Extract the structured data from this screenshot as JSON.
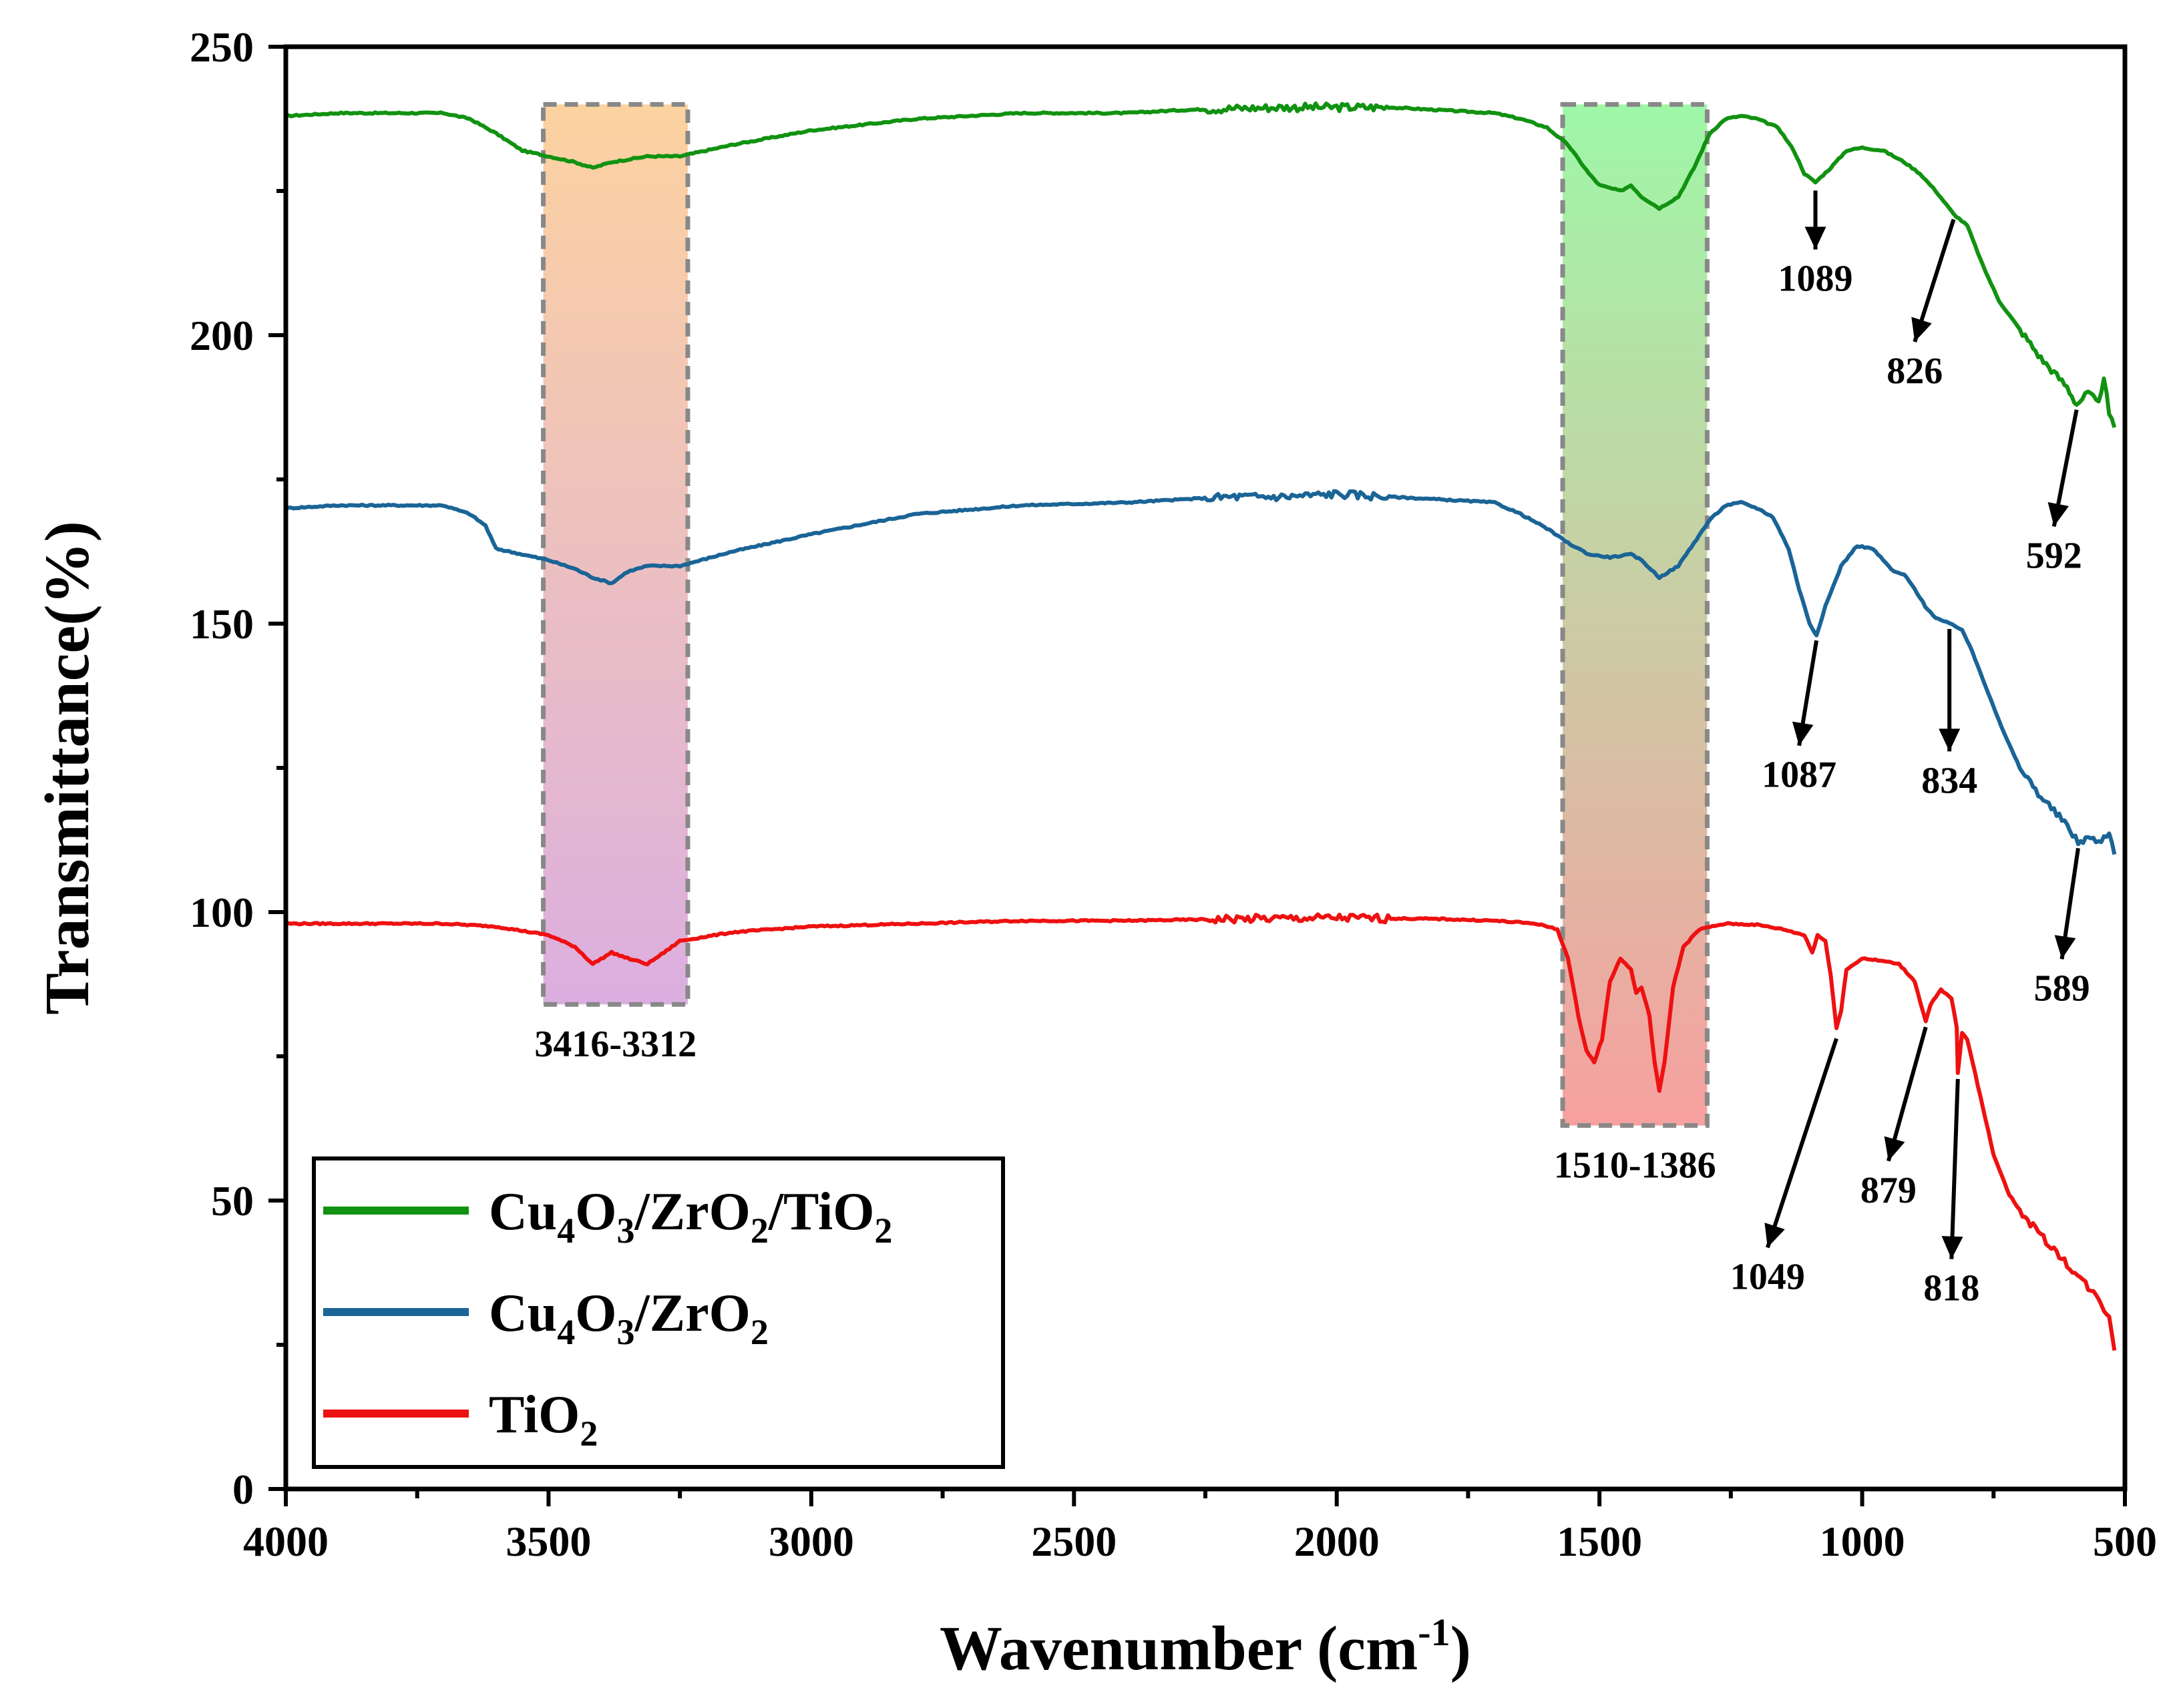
{
  "chart_data": {
    "type": "line",
    "xlabel": "Wavenumber (cm",
    "xlabel_sup": "-1",
    "xlabel_close": ")",
    "ylabel": "Transmittance(%)",
    "xlim": [
      4000,
      500
    ],
    "ylim": [
      0,
      250
    ],
    "x_ticks": [
      4000,
      3500,
      3000,
      2500,
      2000,
      1500,
      1000,
      500
    ],
    "y_ticks": [
      0,
      50,
      100,
      150,
      200,
      250
    ],
    "series": [
      {
        "name": "Cu4O3/ZrO2/TiO2",
        "label_parts": [
          [
            "Cu",
            ""
          ],
          [
            "4",
            "sub"
          ],
          [
            "O",
            ""
          ],
          [
            "3",
            "sub"
          ],
          [
            "/ZrO",
            ""
          ],
          [
            "2",
            "sub"
          ],
          [
            "/TiO",
            ""
          ],
          [
            "2",
            "sub"
          ]
        ],
        "color": "#119211",
        "points": [
          [
            4000,
            238
          ],
          [
            3900,
            238.5
          ],
          [
            3800,
            238.5
          ],
          [
            3700,
            238.5
          ],
          [
            3650,
            237.5
          ],
          [
            3600,
            235
          ],
          [
            3550,
            232
          ],
          [
            3500,
            231
          ],
          [
            3450,
            230
          ],
          [
            3416,
            229
          ],
          [
            3380,
            230
          ],
          [
            3312,
            231
          ],
          [
            3250,
            231
          ],
          [
            3150,
            233
          ],
          [
            3000,
            235.5
          ],
          [
            2800,
            237.5
          ],
          [
            2600,
            238.5
          ],
          [
            2400,
            238.5
          ],
          [
            2300,
            239
          ],
          [
            2200,
            239.3
          ],
          [
            2100,
            239.5
          ],
          [
            2000,
            239.5
          ],
          [
            1900,
            239.5
          ],
          [
            1800,
            239
          ],
          [
            1700,
            238.5
          ],
          [
            1650,
            237.5
          ],
          [
            1600,
            236
          ],
          [
            1560,
            233
          ],
          [
            1520,
            228
          ],
          [
            1500,
            226
          ],
          [
            1460,
            225
          ],
          [
            1440,
            226
          ],
          [
            1420,
            224
          ],
          [
            1386,
            222
          ],
          [
            1350,
            224
          ],
          [
            1320,
            229
          ],
          [
            1290,
            235
          ],
          [
            1260,
            237.5
          ],
          [
            1230,
            238
          ],
          [
            1200,
            237.5
          ],
          [
            1160,
            236
          ],
          [
            1130,
            232
          ],
          [
            1110,
            228
          ],
          [
            1089,
            226.5
          ],
          [
            1060,
            229
          ],
          [
            1030,
            232
          ],
          [
            1000,
            232.5
          ],
          [
            960,
            232
          ],
          [
            920,
            230
          ],
          [
            890,
            228
          ],
          [
            860,
            225
          ],
          [
            826,
            221
          ],
          [
            800,
            219
          ],
          [
            770,
            212
          ],
          [
            740,
            206
          ],
          [
            700,
            201
          ],
          [
            660,
            196
          ],
          [
            630,
            193
          ],
          [
            610,
            191
          ],
          [
            592,
            188
          ],
          [
            570,
            190
          ],
          [
            550,
            188
          ],
          [
            540,
            193
          ],
          [
            530,
            186
          ],
          [
            520,
            184
          ]
        ]
      },
      {
        "name": "Cu4O3/ZrO2",
        "label_parts": [
          [
            "Cu",
            ""
          ],
          [
            "4",
            "sub"
          ],
          [
            "O",
            ""
          ],
          [
            "3",
            "sub"
          ],
          [
            "/ZrO",
            ""
          ],
          [
            "2",
            "sub"
          ]
        ],
        "color": "#1a6496",
        "points": [
          [
            4000,
            170
          ],
          [
            3900,
            170.5
          ],
          [
            3800,
            170.5
          ],
          [
            3700,
            170.5
          ],
          [
            3650,
            169
          ],
          [
            3620,
            167
          ],
          [
            3600,
            163
          ],
          [
            3550,
            162
          ],
          [
            3500,
            161
          ],
          [
            3450,
            159.5
          ],
          [
            3416,
            158
          ],
          [
            3380,
            157
          ],
          [
            3350,
            159
          ],
          [
            3312,
            160
          ],
          [
            3250,
            160
          ],
          [
            3150,
            162.5
          ],
          [
            3000,
            165.5
          ],
          [
            2800,
            169
          ],
          [
            2600,
            170.5
          ],
          [
            2400,
            171
          ],
          [
            2200,
            172
          ],
          [
            2100,
            172
          ],
          [
            2000,
            172.5
          ],
          [
            1900,
            172
          ],
          [
            1800,
            171.5
          ],
          [
            1700,
            171
          ],
          [
            1650,
            169
          ],
          [
            1600,
            166.5
          ],
          [
            1560,
            164
          ],
          [
            1520,
            162
          ],
          [
            1480,
            161.5
          ],
          [
            1440,
            162
          ],
          [
            1420,
            161
          ],
          [
            1386,
            158
          ],
          [
            1350,
            160
          ],
          [
            1320,
            164
          ],
          [
            1290,
            168
          ],
          [
            1260,
            170.5
          ],
          [
            1230,
            171
          ],
          [
            1200,
            170
          ],
          [
            1170,
            168.5
          ],
          [
            1140,
            163
          ],
          [
            1120,
            156
          ],
          [
            1100,
            150
          ],
          [
            1087,
            148
          ],
          [
            1070,
            153
          ],
          [
            1040,
            160
          ],
          [
            1010,
            163.5
          ],
          [
            980,
            163
          ],
          [
            960,
            161
          ],
          [
            940,
            159
          ],
          [
            920,
            158.5
          ],
          [
            900,
            156
          ],
          [
            880,
            153
          ],
          [
            860,
            151
          ],
          [
            834,
            150
          ],
          [
            810,
            149
          ],
          [
            790,
            145
          ],
          [
            760,
            138
          ],
          [
            730,
            131
          ],
          [
            700,
            125
          ],
          [
            660,
            120
          ],
          [
            630,
            117
          ],
          [
            610,
            115
          ],
          [
            589,
            112
          ],
          [
            570,
            113
          ],
          [
            550,
            112
          ],
          [
            530,
            114
          ],
          [
            520,
            110
          ]
        ]
      },
      {
        "name": "TiO2",
        "label_parts": [
          [
            "TiO",
            ""
          ],
          [
            "2",
            "sub"
          ]
        ],
        "color": "#ee1111",
        "points": [
          [
            4000,
            98
          ],
          [
            3900,
            98
          ],
          [
            3800,
            98
          ],
          [
            3700,
            98
          ],
          [
            3600,
            97.5
          ],
          [
            3500,
            96
          ],
          [
            3450,
            94
          ],
          [
            3416,
            91
          ],
          [
            3380,
            93
          ],
          [
            3350,
            92
          ],
          [
            3312,
            91
          ],
          [
            3280,
            93
          ],
          [
            3250,
            95
          ],
          [
            3150,
            96.5
          ],
          [
            3000,
            97.5
          ],
          [
            2800,
            98
          ],
          [
            2600,
            98.5
          ],
          [
            2400,
            98.5
          ],
          [
            2200,
            98.8
          ],
          [
            2000,
            99
          ],
          [
            1800,
            98.8
          ],
          [
            1700,
            98.5
          ],
          [
            1620,
            98
          ],
          [
            1580,
            97
          ],
          [
            1560,
            92
          ],
          [
            1540,
            82
          ],
          [
            1525,
            76
          ],
          [
            1510,
            74
          ],
          [
            1495,
            78
          ],
          [
            1480,
            88
          ],
          [
            1460,
            92
          ],
          [
            1440,
            90
          ],
          [
            1430,
            86
          ],
          [
            1420,
            87
          ],
          [
            1405,
            82
          ],
          [
            1395,
            74
          ],
          [
            1386,
            69
          ],
          [
            1376,
            74
          ],
          [
            1360,
            87
          ],
          [
            1340,
            94
          ],
          [
            1310,
            97
          ],
          [
            1260,
            98
          ],
          [
            1200,
            97.8
          ],
          [
            1150,
            97
          ],
          [
            1110,
            96
          ],
          [
            1095,
            93
          ],
          [
            1085,
            96
          ],
          [
            1070,
            95
          ],
          [
            1060,
            89
          ],
          [
            1049,
            80
          ],
          [
            1040,
            83
          ],
          [
            1030,
            90
          ],
          [
            1000,
            92
          ],
          [
            960,
            91.5
          ],
          [
            930,
            91
          ],
          [
            900,
            88
          ],
          [
            879,
            81
          ],
          [
            870,
            84
          ],
          [
            850,
            86.5
          ],
          [
            830,
            85
          ],
          [
            820,
            80
          ],
          [
            818,
            72
          ],
          [
            810,
            79
          ],
          [
            800,
            78
          ],
          [
            790,
            74
          ],
          [
            770,
            66
          ],
          [
            750,
            58
          ],
          [
            720,
            51
          ],
          [
            690,
            47
          ],
          [
            660,
            44
          ],
          [
            630,
            41
          ],
          [
            600,
            38
          ],
          [
            580,
            36
          ],
          [
            560,
            34
          ],
          [
            545,
            32
          ],
          [
            530,
            30
          ],
          [
            520,
            24
          ]
        ]
      }
    ],
    "shaded_regions": [
      {
        "label": "3416-3312",
        "x_from": 3510,
        "x_to": 3235,
        "y_from": 84,
        "y_to": 240,
        "color_top": "#fcd2a0",
        "color_bottom": "#dcaee0"
      },
      {
        "label": "1510-1386",
        "x_from": 1570,
        "x_to": 1295,
        "y_from": 63,
        "y_to": 240,
        "color_top": "#9ff7a8",
        "color_bottom": "#f7a0a0"
      }
    ],
    "annotations": [
      {
        "text": "1089",
        "x": 1089,
        "y": 226,
        "tx": 1089,
        "ty": 213
      },
      {
        "text": "826",
        "x": 826,
        "y": 221,
        "tx": 900,
        "ty": 197
      },
      {
        "text": "592",
        "x": 592,
        "y": 188,
        "tx": 635,
        "ty": 165
      },
      {
        "text": "1087",
        "x": 1087,
        "y": 148,
        "tx": 1120,
        "ty": 127
      },
      {
        "text": "834",
        "x": 834,
        "y": 150,
        "tx": 834,
        "ty": 126
      },
      {
        "text": "589",
        "x": 589,
        "y": 112,
        "tx": 620,
        "ty": 90
      },
      {
        "text": "1049",
        "x": 1049,
        "y": 79,
        "tx": 1180,
        "ty": 40
      },
      {
        "text": "879",
        "x": 879,
        "y": 81,
        "tx": 950,
        "ty": 55
      },
      {
        "text": "818",
        "x": 818,
        "y": 72,
        "tx": 830,
        "ty": 38
      }
    ],
    "legend": {
      "placement": "bottom-left"
    }
  }
}
